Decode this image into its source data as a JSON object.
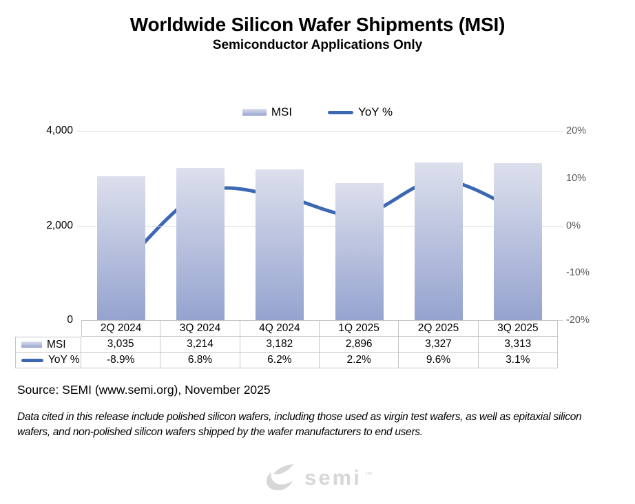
{
  "header": {
    "title": "Worldwide Silicon Wafer Shipments (MSI)",
    "subtitle": "Semiconductor Applications Only"
  },
  "chart_data": {
    "type": "combo",
    "categories": [
      "2Q 2024",
      "3Q 2024",
      "4Q 2024",
      "1Q 2025",
      "2Q 2025",
      "3Q 2025"
    ],
    "series": [
      {
        "name": "MSI",
        "type": "bar",
        "axis": "left",
        "values": [
          3035,
          3214,
          3182,
          2896,
          3327,
          3313
        ],
        "labels": [
          "3,035",
          "3,214",
          "3,182",
          "2,896",
          "3,327",
          "3,313"
        ]
      },
      {
        "name": "YoY %",
        "type": "line",
        "axis": "right",
        "values": [
          -8.9,
          6.8,
          6.2,
          2.2,
          9.6,
          3.1
        ],
        "labels": [
          "-8.9%",
          "6.8%",
          "6.2%",
          "2.2%",
          "9.6%",
          "3.1%"
        ]
      }
    ],
    "left_axis": {
      "ticks": [
        "4,000",
        "2,000",
        "0"
      ],
      "ylim": [
        0,
        4000
      ]
    },
    "right_axis": {
      "ticks": [
        "20%",
        "10%",
        "0%",
        "-10%",
        "-20%"
      ],
      "ylim": [
        -20,
        20
      ]
    },
    "legend_position": "top",
    "grid": "horizontal",
    "colors": {
      "bar_top": "#dcdfec",
      "bar_bottom": "#95a3cf",
      "line": "#3c68b3",
      "gridline": "#d9d9d9",
      "table_border": "#c6c6c6",
      "right_axis_text": "#595959"
    }
  },
  "footer": {
    "source": "Source: SEMI (www.semi.org), November 2025",
    "note": "Data cited in this release include polished silicon wafers, including those used as virgin test wafers, as well as epitaxial silicon wafers, and non-polished silicon wafers shipped by the wafer manufacturers to end users.",
    "logo_text": "semi",
    "logo_mark": "™"
  }
}
